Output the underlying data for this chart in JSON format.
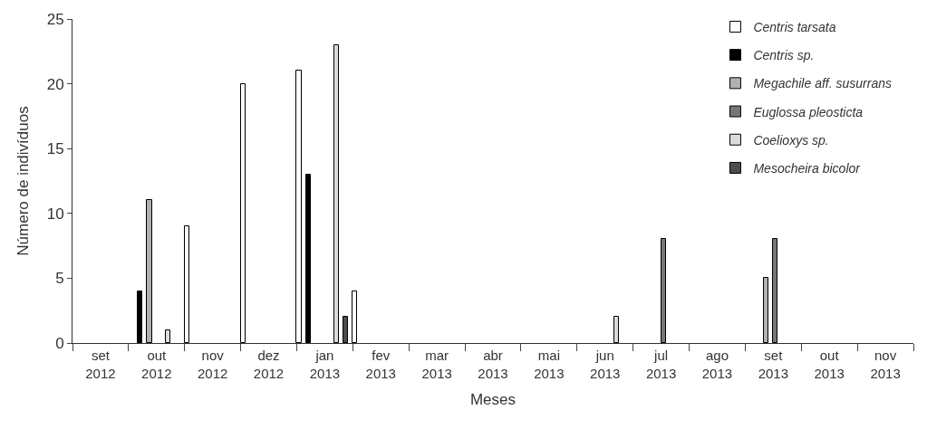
{
  "chart_data": {
    "type": "bar",
    "xlabel": "Meses",
    "ylabel": "Número de indivíduos",
    "categories": [
      "set\n2012",
      "out\n2012",
      "nov\n2012",
      "dez\n2012",
      "jan\n2013",
      "fev\n2013",
      "mar\n2013",
      "abr\n2013",
      "mai\n2013",
      "jun\n2013",
      "jul\n2013",
      "ago\n2013",
      "set\n2013",
      "out\n2013",
      "nov\n2013"
    ],
    "series": [
      {
        "name": "Centris tarsata",
        "color": "#ffffff",
        "values": [
          0,
          0,
          9,
          20,
          21,
          4,
          0,
          0,
          0,
          0,
          0,
          0,
          0,
          0,
          0
        ]
      },
      {
        "name": "Centris sp.",
        "color": "#000000",
        "values": [
          0,
          4,
          0,
          0,
          13,
          0,
          0,
          0,
          0,
          0,
          0,
          0,
          0,
          0,
          0
        ]
      },
      {
        "name": "Megachile aff. susurrans",
        "color": "#b0b0b0",
        "values": [
          0,
          11,
          0,
          0,
          0,
          0,
          0,
          0,
          0,
          0,
          0,
          0,
          5,
          0,
          0
        ]
      },
      {
        "name": "Euglossa pleosticta",
        "color": "#777777",
        "values": [
          0,
          0,
          0,
          0,
          0,
          0,
          0,
          0,
          0,
          0,
          8,
          0,
          8,
          0,
          0
        ]
      },
      {
        "name": "Coelioxys sp.",
        "color": "#dcdcdc",
        "values": [
          0,
          1,
          0,
          0,
          23,
          0,
          0,
          0,
          0,
          2,
          0,
          0,
          0,
          0,
          0
        ]
      },
      {
        "name": "Mesocheira bicolor",
        "color": "#4d4d4d",
        "values": [
          0,
          0,
          0,
          0,
          2,
          0,
          0,
          0,
          0,
          0,
          0,
          0,
          0,
          0,
          0
        ]
      }
    ],
    "ylim": [
      0,
      25
    ],
    "yticks": [
      0,
      5,
      10,
      15,
      20,
      25
    ],
    "grid": false,
    "legend": "top right"
  }
}
